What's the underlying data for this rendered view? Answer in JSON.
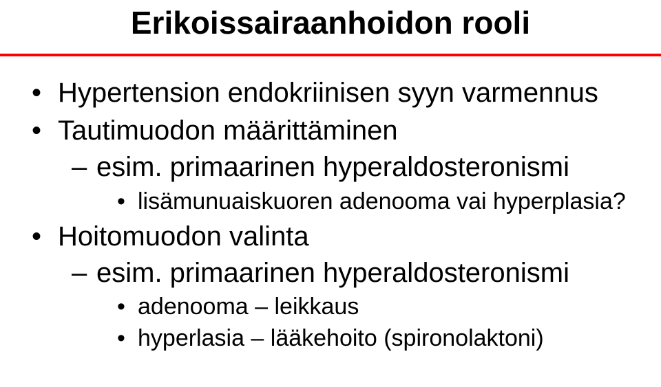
{
  "title": "Erikoissairaanhoidon rooli",
  "items": [
    {
      "text": "Hypertension endokriinisen syyn varmennus"
    },
    {
      "text": "Tautimuodon määrittäminen",
      "sub": [
        {
          "text": "esim. primaarinen hyperaldosteronismi",
          "sub": [
            {
              "text": "lisämunuaiskuoren adenooma vai hyperplasia?"
            }
          ]
        }
      ]
    },
    {
      "text": "Hoitomuodon valinta",
      "sub": [
        {
          "text": "esim. primaarinen hyperaldosteronismi",
          "sub": [
            {
              "text": "adenooma – leikkaus"
            },
            {
              "text": "hyperlasia – lääkehoito (spironolaktoni)"
            }
          ]
        }
      ]
    }
  ],
  "colors": {
    "rule": "#ff0000",
    "background": "#ffffff",
    "text": "#000000"
  },
  "fonts": {
    "family": "Comic Sans MS",
    "title_size_pt": 34,
    "body_size_pt": 30,
    "subsub_size_pt": 26
  }
}
